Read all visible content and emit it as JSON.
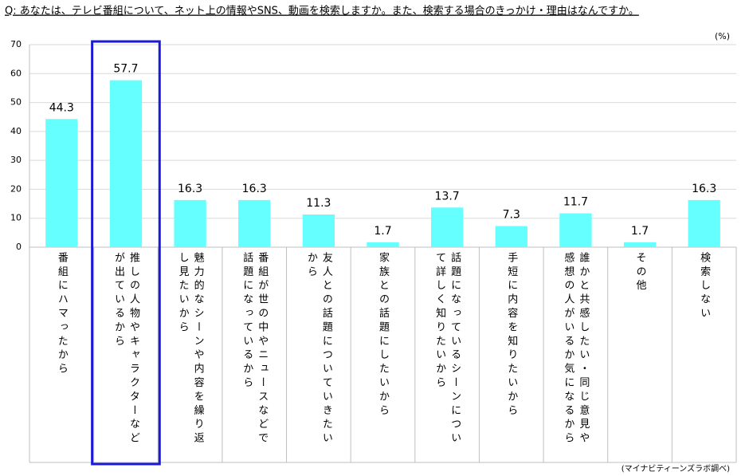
{
  "chart_data": {
    "type": "bar",
    "title": "Q:  あなたは、テレビ番組について、ネット上の情報やSNS、動画を検索しますか。また、検索する場合のきっかけ・理由はなんですか。",
    "unit_label": "(%)",
    "source": "(マイナビティーンズラボ調べ)",
    "categories": [
      "番組にハマったから",
      "推しの人物やキャラクターなどが出ているから",
      "魅力的なシーンや内容を繰り返し見たいから",
      "番組が世の中やニュースなどで話題になっているから",
      "友人との話題についていきたいから",
      "家族との話題にしたいから",
      "話題になっているシーンについて詳しく知りたいから",
      "手短に内容を知りたいから",
      "誰かと共感したい・同じ意見や感想の人がいるか気になるから",
      "その他",
      "検索しない"
    ],
    "values": [
      44.3,
      57.7,
      16.3,
      16.3,
      11.3,
      1.7,
      13.7,
      7.3,
      11.7,
      1.7,
      16.3
    ],
    "color": "#66ffff",
    "ylim": [
      0,
      70
    ],
    "yticks": [
      0,
      10,
      20,
      30,
      40,
      50,
      60,
      70
    ],
    "grid": true
  }
}
